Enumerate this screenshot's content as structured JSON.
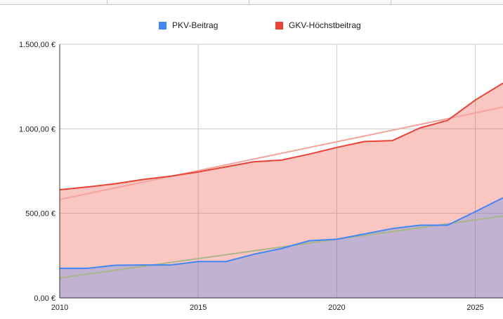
{
  "colors": {
    "pkv": "#4285f4",
    "gkv": "#ea4335",
    "pkv_trend": "#aab58a",
    "gkv_trend": "#f4a49c",
    "grid": "#cccccc",
    "axis": "#333333"
  },
  "chart_data": {
    "type": "area",
    "title": "",
    "xlabel": "",
    "ylabel": "",
    "x": [
      2010,
      2011,
      2012,
      2013,
      2014,
      2015,
      2016,
      2017,
      2018,
      2019,
      2020,
      2021,
      2022,
      2023,
      2024,
      2025,
      2026
    ],
    "xlim": [
      2010,
      2026
    ],
    "ylim": [
      0,
      1500
    ],
    "x_ticks": [
      2010,
      2015,
      2020,
      2025
    ],
    "x_tick_labels": [
      "2010",
      "2015",
      "2020",
      "2025"
    ],
    "y_ticks": [
      0,
      500,
      1000,
      1500
    ],
    "y_tick_labels": [
      "0,00 €",
      "500,00 €",
      "1.000,00 €",
      "1.500,00 €"
    ],
    "legend_position": "top",
    "series": [
      {
        "name": "PKV-Beitrag",
        "values": [
          175,
          175,
          193,
          195,
          195,
          215,
          215,
          258,
          292,
          338,
          347,
          378,
          410,
          430,
          430,
          510,
          592
        ],
        "trend": [
          118,
          484
        ]
      },
      {
        "name": "GKV-Höchstbeitrag",
        "values": [
          640,
          656,
          675,
          700,
          720,
          745,
          775,
          805,
          815,
          850,
          890,
          925,
          930,
          1005,
          1050,
          1170,
          1270
        ],
        "trend": [
          582,
          1128
        ]
      }
    ]
  }
}
